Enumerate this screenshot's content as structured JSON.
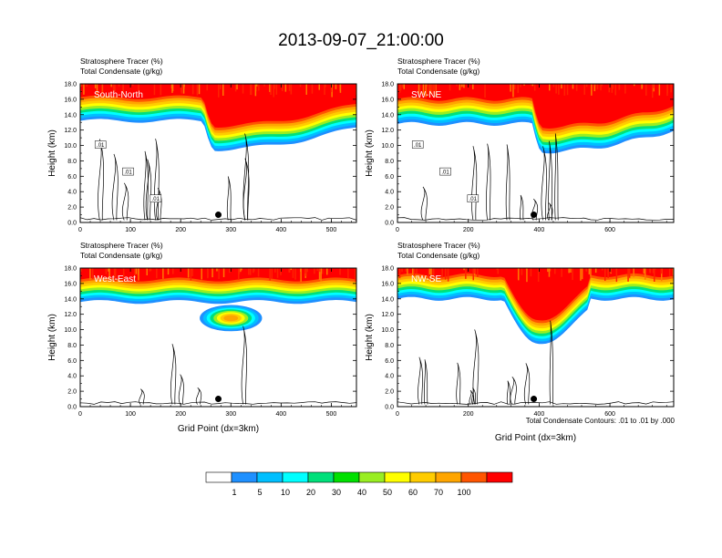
{
  "title": "2013-09-07_21:00:00",
  "panel_header_left": "Stratosphere Tracer   (%)",
  "panel_header_right": "Total Condensate   (g/kg)",
  "contour_note": "Total Condensate Contours: .01 to .01 by .000",
  "colorbar": {
    "colors": [
      "#ffffff",
      "#1e90ff",
      "#00bfff",
      "#00ffff",
      "#00e07a",
      "#00e000",
      "#99ee22",
      "#ffff00",
      "#ffcc00",
      "#ffa500",
      "#ff5500",
      "#ff0000"
    ],
    "labels": [
      "1",
      "5",
      "10",
      "20",
      "30",
      "40",
      "50",
      "60",
      "70",
      "100"
    ]
  },
  "chart_data": [
    {
      "type": "heatmap",
      "panel": "South-North",
      "title": "South-North",
      "header_left": "Stratosphere Tracer   (%)",
      "header_right": "Total Condensate   (g/kg)",
      "xlabel": "",
      "ylabel": "Height (km)",
      "xlim": [
        0,
        550
      ],
      "ylim": [
        0,
        18
      ],
      "xticks": [
        0,
        100,
        200,
        300,
        400,
        500
      ],
      "yticks": [
        "0.0",
        "2.0",
        "4.0",
        "6.0",
        "8.0",
        "10.0",
        "12.0",
        "14.0",
        "16.0",
        "18.0"
      ],
      "marker_x": 275,
      "marker_y": 1.0,
      "contour_labels": [
        ".01",
        ".01",
        ".01"
      ],
      "base_bottom": 13.2,
      "base_top": 14.2,
      "fold": {
        "x_start": 245,
        "x_end": 550,
        "min_height": 9.5,
        "min_x": 270
      }
    },
    {
      "type": "heatmap",
      "panel": "SW-NE",
      "title": "SW-NE",
      "header_left": "Stratosphere Tracer   (%)",
      "header_right": "Total Condensate   (g/kg)",
      "xlabel": "",
      "ylabel": "Height (km)",
      "xlim": [
        0,
        780
      ],
      "ylim": [
        0,
        18
      ],
      "xticks": [
        0,
        200,
        400,
        600
      ],
      "yticks": [
        "0.0",
        "2.0",
        "4.0",
        "6.0",
        "8.0",
        "10.0",
        "12.0",
        "14.0",
        "16.0",
        "18.0"
      ],
      "marker_x": 385,
      "marker_y": 1.0,
      "contour_labels": [
        ".01",
        ".01",
        ".01"
      ],
      "base_bottom": 12.8,
      "base_top": 14.0,
      "fold": {
        "x_start": 380,
        "x_end": 780,
        "min_height": 9.2,
        "min_x": 410
      }
    },
    {
      "type": "heatmap",
      "panel": "West-East",
      "title": "West-East",
      "header_left": "Stratosphere Tracer   (%)",
      "header_right": "Total Condensate   (g/kg)",
      "xlabel": "Grid Point (dx=3km)",
      "ylabel": "Height (km)",
      "xlim": [
        0,
        550
      ],
      "ylim": [
        0,
        18
      ],
      "xticks": [
        0,
        100,
        200,
        300,
        400,
        500
      ],
      "yticks": [
        "0.0",
        "2.0",
        "4.0",
        "6.0",
        "8.0",
        "10.0",
        "12.0",
        "14.0",
        "16.0",
        "18.0"
      ],
      "marker_x": 275,
      "marker_y": 1.0,
      "contour_labels": [],
      "base_bottom": 13.6,
      "base_top": 14.8,
      "blob": {
        "x_center": 300,
        "y_center": 11.5,
        "x_radius": 62,
        "y_radius": 1.7
      }
    },
    {
      "type": "heatmap",
      "panel": "NW-SE",
      "title": "NW-SE",
      "header_left": "Stratosphere Tracer   (%)",
      "header_right": "Total Condensate   (g/kg)",
      "xlabel": "Grid Point (dx=3km)",
      "ylabel": "Height (km)",
      "xlim": [
        0,
        780
      ],
      "ylim": [
        0,
        18
      ],
      "xticks": [
        0,
        200,
        400,
        600
      ],
      "yticks": [
        "0.0",
        "2.0",
        "4.0",
        "6.0",
        "8.0",
        "10.0",
        "12.0",
        "14.0",
        "16.0",
        "18.0"
      ],
      "marker_x": 385,
      "marker_y": 1.0,
      "contour_labels": [],
      "base_bottom": 14.0,
      "base_top": 15.0,
      "fold": {
        "x_start": 300,
        "x_end": 540,
        "min_height": 8.2,
        "min_x": 390
      }
    }
  ]
}
